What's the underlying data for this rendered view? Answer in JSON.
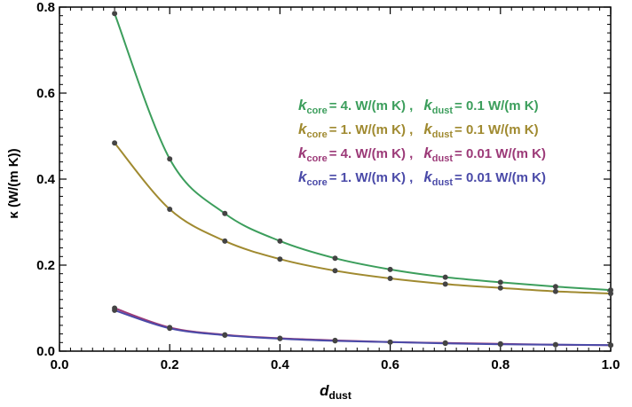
{
  "chart_data": {
    "type": "line",
    "xlabel": {
      "main": "d",
      "sub": "dust"
    },
    "ylabel": "κ (W/(m K))",
    "xlim": [
      0,
      1
    ],
    "ylim": [
      0,
      0.8
    ],
    "xticks": [
      "0.0",
      "0.2",
      "0.4",
      "0.6",
      "0.8",
      "1.0"
    ],
    "yticks": [
      "0.0",
      "0.2",
      "0.4",
      "0.6",
      "0.8"
    ],
    "grid": false,
    "legend_position": "top-right",
    "x": [
      0.1,
      0.2,
      0.3,
      0.4,
      0.5,
      0.6,
      0.7,
      0.8,
      0.9,
      1.0
    ],
    "series": [
      {
        "label_core": "= 4. W/(m K) ,",
        "label_dust": "= 0.1 W/(m K)",
        "color": "#3c9e5c",
        "values": [
          0.785,
          0.447,
          0.32,
          0.256,
          0.216,
          0.19,
          0.172,
          0.16,
          0.15,
          0.142
        ]
      },
      {
        "label_core": "= 1. W/(m K) ,",
        "label_dust": "= 0.1 W/(m K)",
        "color": "#a08a30",
        "values": [
          0.484,
          0.33,
          0.256,
          0.214,
          0.187,
          0.169,
          0.156,
          0.147,
          0.139,
          0.134
        ]
      },
      {
        "label_core": "= 4. W/(m K) ,",
        "label_dust": "= 0.01 W/(m K)",
        "color": "#9c3a78",
        "values": [
          0.1,
          0.055,
          0.038,
          0.03,
          0.025,
          0.021,
          0.019,
          0.017,
          0.015,
          0.014
        ]
      },
      {
        "label_core": "= 1. W/(m K) ,",
        "label_dust": "= 0.01 W/(m K)",
        "color": "#4a4aa8",
        "values": [
          0.095,
          0.053,
          0.037,
          0.029,
          0.024,
          0.021,
          0.018,
          0.016,
          0.015,
          0.014
        ]
      }
    ],
    "legend_symbol": "k",
    "legend_sub_core": "core",
    "legend_sub_dust": "dust"
  }
}
